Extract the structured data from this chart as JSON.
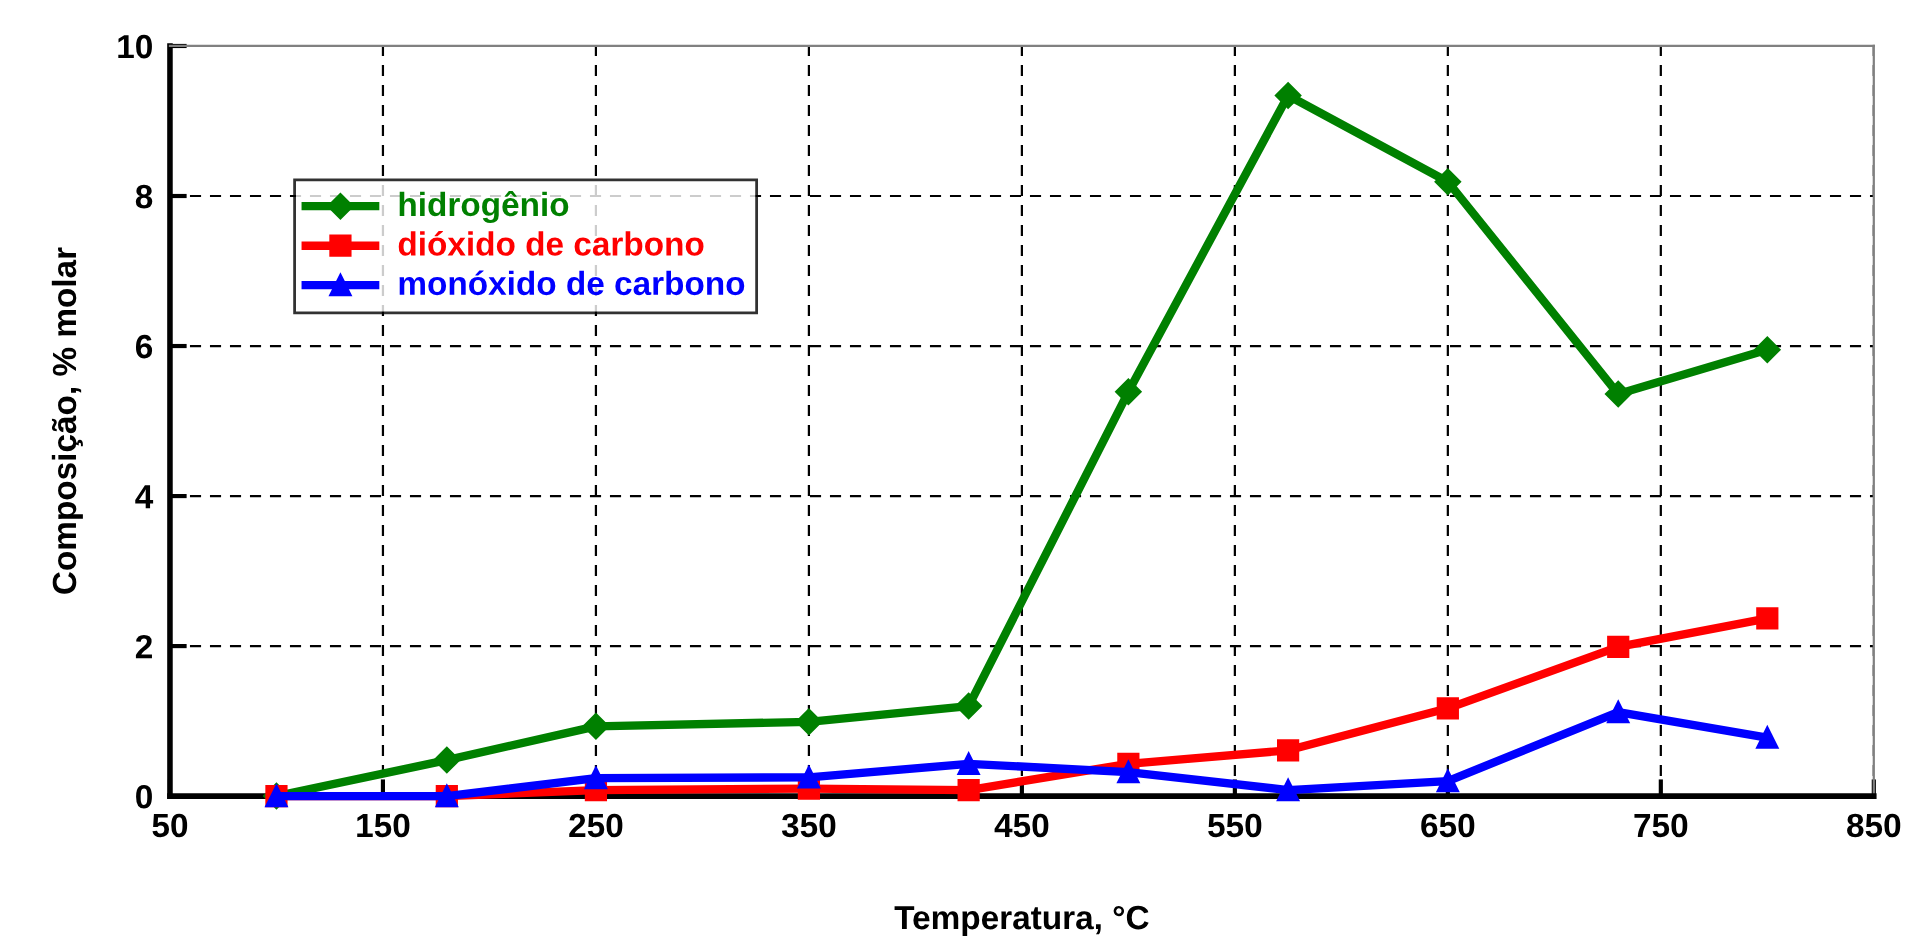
{
  "chart_data": {
    "type": "line",
    "xlabel": "Temperatura, °C",
    "ylabel": "Composição, % molar",
    "x": [
      100,
      180,
      250,
      350,
      425,
      500,
      575,
      650,
      730,
      800
    ],
    "series": [
      {
        "name": "hidrogênio",
        "color": "#008000",
        "marker": "diamond",
        "values": [
          0,
          0.48,
          0.93,
          0.99,
          1.2,
          5.39,
          9.34,
          8.19,
          5.36,
          5.95
        ]
      },
      {
        "name": "dióxido de carbono",
        "color": "#ff0000",
        "marker": "square",
        "values": [
          0,
          0,
          0.08,
          0.1,
          0.08,
          0.43,
          0.61,
          1.17,
          1.99,
          2.37
        ]
      },
      {
        "name": "monóxido de carbono",
        "color": "#0000ff",
        "marker": "triangle",
        "values": [
          0,
          0,
          0.24,
          0.25,
          0.43,
          0.32,
          0.08,
          0.2,
          1.12,
          0.78
        ]
      }
    ],
    "xlim": [
      50,
      850
    ],
    "xticks": [
      50,
      150,
      250,
      350,
      450,
      550,
      650,
      750,
      850
    ],
    "ylim": [
      0,
      10
    ],
    "yticks": [
      0,
      2,
      4,
      6,
      8,
      10
    ],
    "grid": true,
    "legend": "top left",
    "line_style": "solid"
  }
}
